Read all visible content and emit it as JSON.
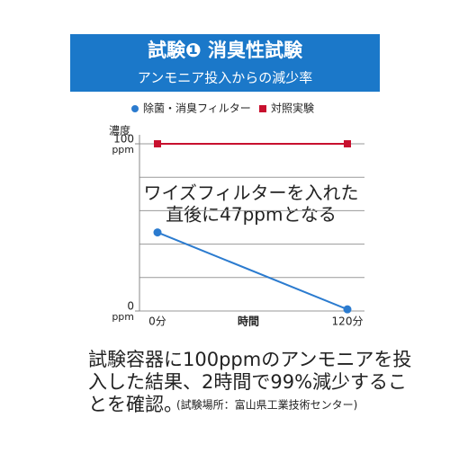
{
  "chart_data": {
    "type": "line",
    "title": "試験❶ 消臭性試験",
    "subtitle": "アンモニア投入からの減少率",
    "ylabel": "濃度",
    "y_unit": "ppm",
    "xlabel": "時間",
    "x": [
      0,
      120
    ],
    "xlim": [
      0,
      120
    ],
    "xticks": [
      {
        "value": 0,
        "label": "0分"
      },
      {
        "value": 120,
        "label": "120分"
      }
    ],
    "ylim": [
      0,
      100
    ],
    "yticks": [
      0,
      100
    ],
    "ygrid": [
      0,
      20,
      40,
      60,
      80,
      100
    ],
    "series": [
      {
        "name": "除菌・消臭フィルター",
        "color": "#2b7bcf",
        "marker": "circle",
        "values": [
          47,
          1
        ]
      },
      {
        "name": "対照実験",
        "color": "#c8102e",
        "marker": "square",
        "values": [
          100,
          100
        ]
      }
    ],
    "annotation": [
      "ワイズフィルターを入れた",
      "直後に47ppmとなる"
    ],
    "caption": [
      "試験容器に100ppmのアンモニアを投",
      "入した結果、2時間で99%減少するこ",
      "とを確認。"
    ],
    "caption_note": "(試験場所：富山県工業技術センター)"
  }
}
